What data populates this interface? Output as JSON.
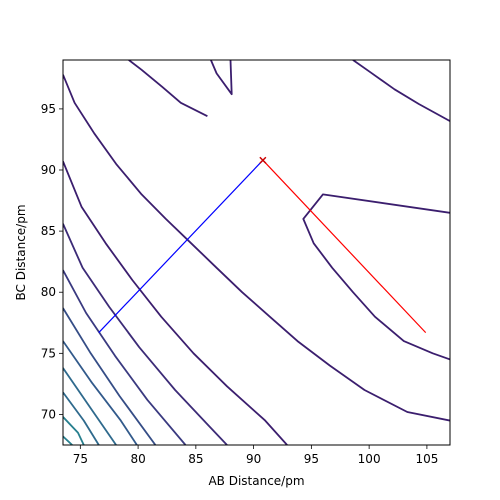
{
  "chart_data": {
    "type": "contour",
    "title": "",
    "xlabel": "AB Distance/pm",
    "ylabel": "BC Distance/pm",
    "xlim": [
      73.5,
      107
    ],
    "ylim": [
      67.5,
      99
    ],
    "xticks": [
      75,
      80,
      85,
      90,
      95,
      100,
      105
    ],
    "yticks": [
      70,
      75,
      80,
      85,
      90,
      95
    ],
    "grid": false,
    "contours": [
      {
        "color": "#3b1e6e",
        "points": [
          [
            86.3,
            99
          ],
          [
            86.8,
            97.9
          ],
          [
            88.1,
            96.2
          ],
          [
            88.0,
            99
          ]
        ]
      },
      {
        "color": "#3b1e6e",
        "points": [
          [
            79.2,
            99
          ],
          [
            80.3,
            98.2
          ],
          [
            82.1,
            96.8
          ],
          [
            83.7,
            95.5
          ],
          [
            86.0,
            94.4
          ]
        ]
      },
      {
        "color": "#3b1e6e",
        "points": [
          [
            98.6,
            99
          ],
          [
            100.1,
            98.0
          ],
          [
            102.2,
            96.6
          ],
          [
            104.3,
            95.4
          ],
          [
            107,
            94.0
          ]
        ]
      },
      {
        "color": "#3b1e6e",
        "points": [
          [
            107,
            86.5
          ],
          [
            96.0,
            88.0
          ],
          [
            94.3,
            86.0
          ],
          [
            95.2,
            84.0
          ],
          [
            96.8,
            82.0
          ],
          [
            98.6,
            80.0
          ],
          [
            100.5,
            78.0
          ],
          [
            103.0,
            76.0
          ],
          [
            105.5,
            75.0
          ],
          [
            107,
            74.5
          ]
        ]
      },
      {
        "color": "#3b1e6e",
        "points": [
          [
            73.5,
            97.8
          ],
          [
            74.5,
            95.5
          ],
          [
            76.2,
            93.0
          ],
          [
            78.1,
            90.5
          ],
          [
            80.3,
            88.0
          ],
          [
            82.4,
            86.0
          ],
          [
            84.6,
            84.0
          ],
          [
            86.8,
            82.0
          ],
          [
            89.0,
            80.0
          ],
          [
            91.4,
            78.0
          ],
          [
            93.8,
            76.0
          ],
          [
            96.6,
            74.0
          ],
          [
            99.6,
            72.0
          ],
          [
            103.3,
            70.2
          ],
          [
            107,
            69.5
          ]
        ]
      },
      {
        "color": "#3b1e6e",
        "points": [
          [
            73.5,
            90.7
          ],
          [
            75.1,
            87.0
          ],
          [
            77.2,
            84.0
          ],
          [
            79.5,
            81.0
          ],
          [
            82.0,
            78.0
          ],
          [
            84.8,
            75.0
          ],
          [
            87.7,
            72.3
          ],
          [
            91.0,
            69.5
          ],
          [
            92.9,
            67.5
          ]
        ]
      },
      {
        "color": "#3c2b77",
        "points": [
          [
            73.5,
            85.6
          ],
          [
            75.2,
            82.0
          ],
          [
            77.5,
            78.8
          ],
          [
            80.1,
            75.5
          ],
          [
            83.2,
            72.0
          ],
          [
            86.2,
            69.0
          ],
          [
            87.7,
            67.5
          ]
        ]
      },
      {
        "color": "#3a3a80",
        "points": [
          [
            73.5,
            81.8
          ],
          [
            75.5,
            78.3
          ],
          [
            78.0,
            74.8
          ],
          [
            80.8,
            71.2
          ],
          [
            84.1,
            67.5
          ]
        ]
      },
      {
        "color": "#354d86",
        "points": [
          [
            73.5,
            78.7
          ],
          [
            75.9,
            75.0
          ],
          [
            78.4,
            71.5
          ],
          [
            81.5,
            67.5
          ]
        ]
      },
      {
        "color": "#325a8b",
        "points": [
          [
            73.5,
            76.0
          ],
          [
            76.0,
            72.6
          ],
          [
            78.5,
            69.5
          ],
          [
            79.9,
            67.5
          ]
        ]
      },
      {
        "color": "#2f6a8d",
        "points": [
          [
            73.5,
            73.8
          ],
          [
            75.9,
            70.5
          ],
          [
            78.1,
            67.5
          ]
        ]
      },
      {
        "color": "#2f6a8d",
        "points": [
          [
            73.5,
            71.8
          ],
          [
            75.3,
            69.5
          ],
          [
            76.6,
            67.5
          ]
        ]
      },
      {
        "color": "#277f8e",
        "points": [
          [
            73.5,
            69.8
          ],
          [
            74.8,
            68.5
          ],
          [
            75.3,
            67.5
          ]
        ]
      },
      {
        "color": "#277f8e",
        "points": [
          [
            73.5,
            68.2
          ],
          [
            74.3,
            67.5
          ]
        ]
      }
    ],
    "trajectories": [
      {
        "color": "#0000ff",
        "points": [
          [
            76.6,
            76.7
          ],
          [
            90.8,
            90.8
          ]
        ]
      },
      {
        "color": "#ff0000",
        "points": [
          [
            90.8,
            90.8
          ],
          [
            104.9,
            76.7
          ]
        ]
      }
    ],
    "marker": {
      "x": 90.8,
      "y": 90.8,
      "color": "#cc0000"
    }
  }
}
